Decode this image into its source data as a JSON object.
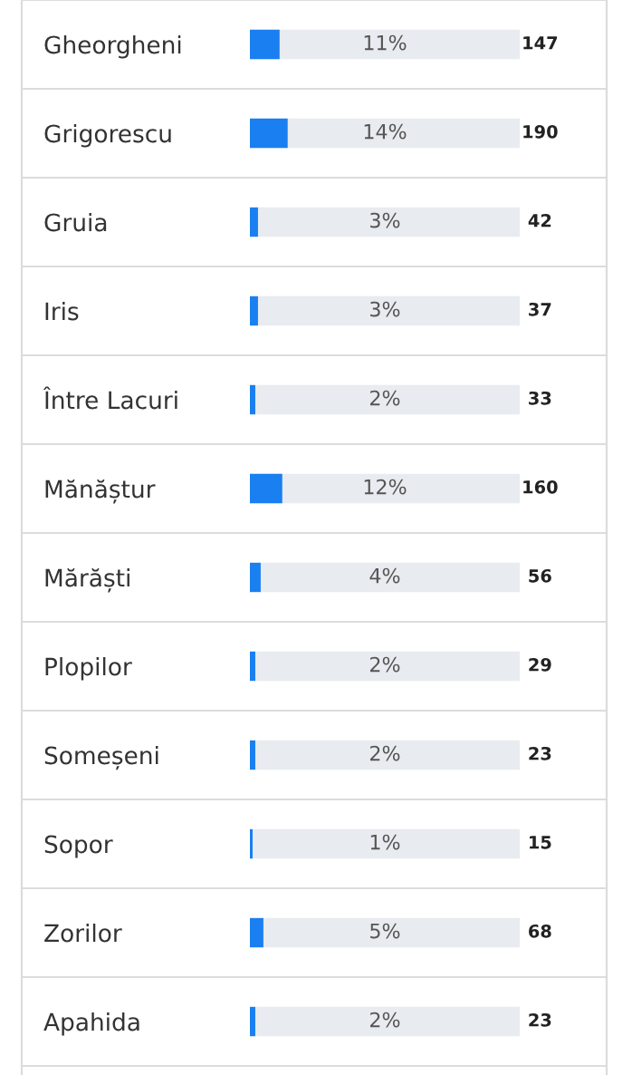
{
  "chart_data": {
    "type": "bar",
    "orientation": "horizontal",
    "categories": [
      "Gheorgheni",
      "Grigorescu",
      "Gruia",
      "Iris",
      "Între Lacuri",
      "Mănăștur",
      "Mărăști",
      "Plopilor",
      "Someșeni",
      "Sopor",
      "Zorilor",
      "Apahida"
    ],
    "values": [
      11,
      14,
      3,
      3,
      2,
      12,
      4,
      2,
      2,
      1,
      5,
      2
    ],
    "value_labels": [
      "11%",
      "14%",
      "3%",
      "3%",
      "2%",
      "12%",
      "4%",
      "2%",
      "2%",
      "1%",
      "5%",
      "2%"
    ],
    "color": "#1a7ff0",
    "xlim": [
      0,
      100
    ],
    "annotations": [
      "147",
      "190",
      "42",
      "37",
      "33",
      "160",
      "56",
      "29",
      "23",
      "15",
      "68",
      "23"
    ]
  }
}
